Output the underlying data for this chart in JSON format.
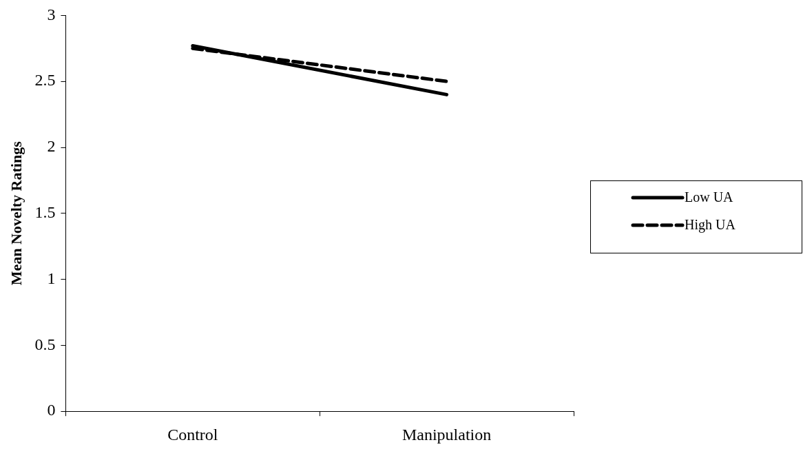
{
  "chart_data": {
    "type": "line",
    "ylabel": "Mean Novelty Ratings",
    "categories": [
      "Control",
      "Manipulation"
    ],
    "series": [
      {
        "name": "Low UA",
        "color": "#000000",
        "values": [
          2.77,
          2.4
        ],
        "line_style": "solid"
      },
      {
        "name": "High UA",
        "color": "#000000",
        "values": [
          2.75,
          2.5
        ],
        "line_style": "dashed"
      }
    ],
    "ylim": [
      0,
      3
    ],
    "yticks": [
      0,
      0.5,
      1,
      1.5,
      2,
      2.5,
      3
    ],
    "grid": false,
    "legend": "right",
    "marker": "none"
  }
}
